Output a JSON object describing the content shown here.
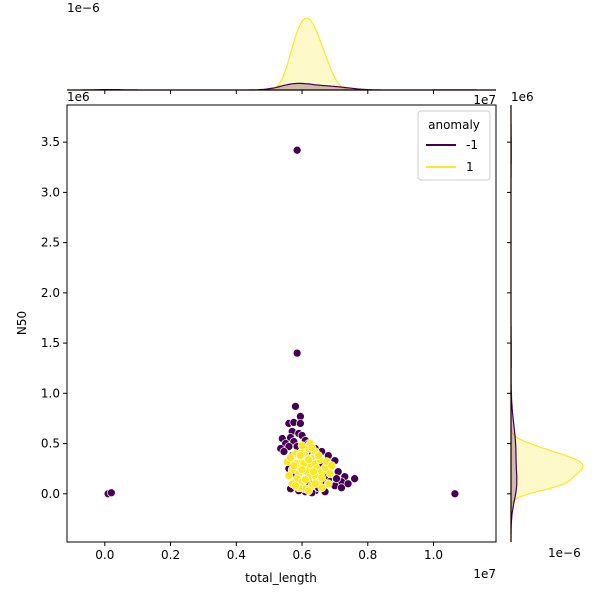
{
  "chart_data": {
    "type": "scatter",
    "kind": "jointplot",
    "xlabel": "total_length",
    "ylabel": "N50",
    "x_offset_text": "1e7",
    "y_offset_text": "1e6",
    "top_marginal_offset_text": "1e−6",
    "right_marginal_offset_text": "1e−6",
    "top_marginal_corner_text": "1e7",
    "right_marginal_corner_text": "1e6",
    "xlim": [
      -0.115,
      1.19
    ],
    "ylim": [
      -0.48,
      3.87
    ],
    "x_ticks": [
      "0.0",
      "0.2",
      "0.4",
      "0.6",
      "0.8",
      "1.0"
    ],
    "y_ticks": [
      "0.0",
      "0.5",
      "1.0",
      "1.5",
      "2.0",
      "2.5",
      "3.0",
      "3.5"
    ],
    "legend": {
      "title": "anomaly",
      "position": "top-right",
      "entries": [
        "-1",
        "1"
      ]
    },
    "colors": {
      "-1": "#440154",
      "1": "#fde725"
    },
    "series": [
      {
        "name": "-1",
        "color": "#440154",
        "points": [
          [
            0.01,
            0.0
          ],
          [
            0.02,
            0.01
          ],
          [
            1.065,
            0.0
          ],
          [
            0.585,
            3.42
          ],
          [
            0.585,
            1.4
          ],
          [
            0.58,
            0.87
          ],
          [
            0.595,
            0.77
          ],
          [
            0.56,
            0.7
          ],
          [
            0.575,
            0.71
          ],
          [
            0.595,
            0.7
          ],
          [
            0.57,
            0.62
          ],
          [
            0.59,
            0.6
          ],
          [
            0.54,
            0.55
          ],
          [
            0.565,
            0.56
          ],
          [
            0.6,
            0.58
          ],
          [
            0.55,
            0.5
          ],
          [
            0.575,
            0.52
          ],
          [
            0.61,
            0.53
          ],
          [
            0.62,
            0.5
          ],
          [
            0.535,
            0.45
          ],
          [
            0.56,
            0.47
          ],
          [
            0.64,
            0.45
          ],
          [
            0.66,
            0.42
          ],
          [
            0.68,
            0.38
          ],
          [
            0.7,
            0.33
          ],
          [
            0.66,
            0.3
          ],
          [
            0.69,
            0.28
          ],
          [
            0.71,
            0.22
          ],
          [
            0.73,
            0.17
          ],
          [
            0.72,
            0.12
          ],
          [
            0.76,
            0.15
          ],
          [
            0.7,
            0.08
          ],
          [
            0.67,
            0.02
          ],
          [
            0.64,
            0.03
          ],
          [
            0.61,
            0.02
          ],
          [
            0.59,
            0.03
          ],
          [
            0.565,
            0.05
          ],
          [
            0.6,
            0.06
          ],
          [
            0.65,
            0.06
          ],
          [
            0.68,
            0.14
          ],
          [
            0.63,
            0.01
          ],
          [
            0.59,
            0.09
          ],
          [
            0.575,
            0.2
          ],
          [
            0.56,
            0.25
          ],
          [
            0.57,
            0.38
          ],
          [
            0.545,
            0.42
          ],
          [
            0.67,
            0.18
          ],
          [
            0.72,
            0.06
          ],
          [
            0.74,
            0.1
          ],
          [
            0.62,
            0.12
          ],
          [
            0.6,
            0.36
          ],
          [
            0.66,
            0.1
          ],
          [
            0.705,
            0.15
          ],
          [
            0.585,
            0.47
          ],
          [
            0.615,
            0.41
          ]
        ]
      },
      {
        "name": "1",
        "color": "#fde725",
        "points": [
          [
            0.58,
            0.4
          ],
          [
            0.6,
            0.42
          ],
          [
            0.62,
            0.45
          ],
          [
            0.61,
            0.38
          ],
          [
            0.63,
            0.35
          ],
          [
            0.6,
            0.33
          ],
          [
            0.58,
            0.3
          ],
          [
            0.595,
            0.26
          ],
          [
            0.62,
            0.28
          ],
          [
            0.64,
            0.3
          ],
          [
            0.655,
            0.34
          ],
          [
            0.645,
            0.25
          ],
          [
            0.615,
            0.22
          ],
          [
            0.59,
            0.2
          ],
          [
            0.57,
            0.24
          ],
          [
            0.585,
            0.15
          ],
          [
            0.6,
            0.12
          ],
          [
            0.62,
            0.16
          ],
          [
            0.64,
            0.18
          ],
          [
            0.66,
            0.22
          ],
          [
            0.67,
            0.26
          ],
          [
            0.65,
            0.12
          ],
          [
            0.63,
            0.08
          ],
          [
            0.61,
            0.05
          ],
          [
            0.59,
            0.06
          ],
          [
            0.57,
            0.1
          ],
          [
            0.56,
            0.18
          ],
          [
            0.555,
            0.32
          ],
          [
            0.565,
            0.36
          ],
          [
            0.6,
            0.48
          ],
          [
            0.625,
            0.5
          ],
          [
            0.64,
            0.42
          ],
          [
            0.675,
            0.32
          ],
          [
            0.685,
            0.2
          ],
          [
            0.68,
            0.1
          ],
          [
            0.66,
            0.06
          ],
          [
            0.62,
            0.03
          ],
          [
            0.605,
            0.3
          ],
          [
            0.635,
            0.22
          ],
          [
            0.595,
            0.38
          ],
          [
            0.575,
            0.28
          ],
          [
            0.61,
            0.14
          ],
          [
            0.65,
            0.38
          ],
          [
            0.63,
            0.46
          ],
          [
            0.66,
            0.16
          ],
          [
            0.69,
            0.28
          ],
          [
            0.58,
            0.08
          ],
          [
            0.64,
            0.1
          ],
          [
            0.62,
            0.34
          ],
          [
            0.6,
            0.24
          ]
        ]
      }
    ]
  }
}
